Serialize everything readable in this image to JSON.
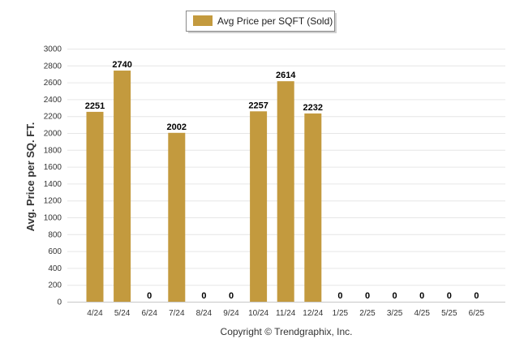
{
  "chart_data": {
    "type": "bar",
    "categories": [
      "4/24",
      "5/24",
      "6/24",
      "7/24",
      "8/24",
      "9/24",
      "10/24",
      "11/24",
      "12/24",
      "1/25",
      "2/25",
      "3/25",
      "4/25",
      "5/25",
      "6/25"
    ],
    "series": [
      {
        "name": "Avg Price per SQFT (Sold)",
        "values": [
          2251,
          2740,
          0,
          2002,
          0,
          0,
          2257,
          2614,
          2232,
          0,
          0,
          0,
          0,
          0,
          0
        ]
      }
    ],
    "ylabel": "Avg. Price per SQ. FT.",
    "ylim": [
      0,
      3000
    ],
    "yticks": [
      0,
      200,
      400,
      600,
      800,
      1000,
      1200,
      1400,
      1600,
      1800,
      2000,
      2200,
      2400,
      2600,
      2800,
      3000
    ],
    "grid": true,
    "legend_position": "top-center",
    "bar_color": "#c39a3e"
  },
  "footer": {
    "copyright": "Copyright © Trendgraphix, Inc."
  }
}
